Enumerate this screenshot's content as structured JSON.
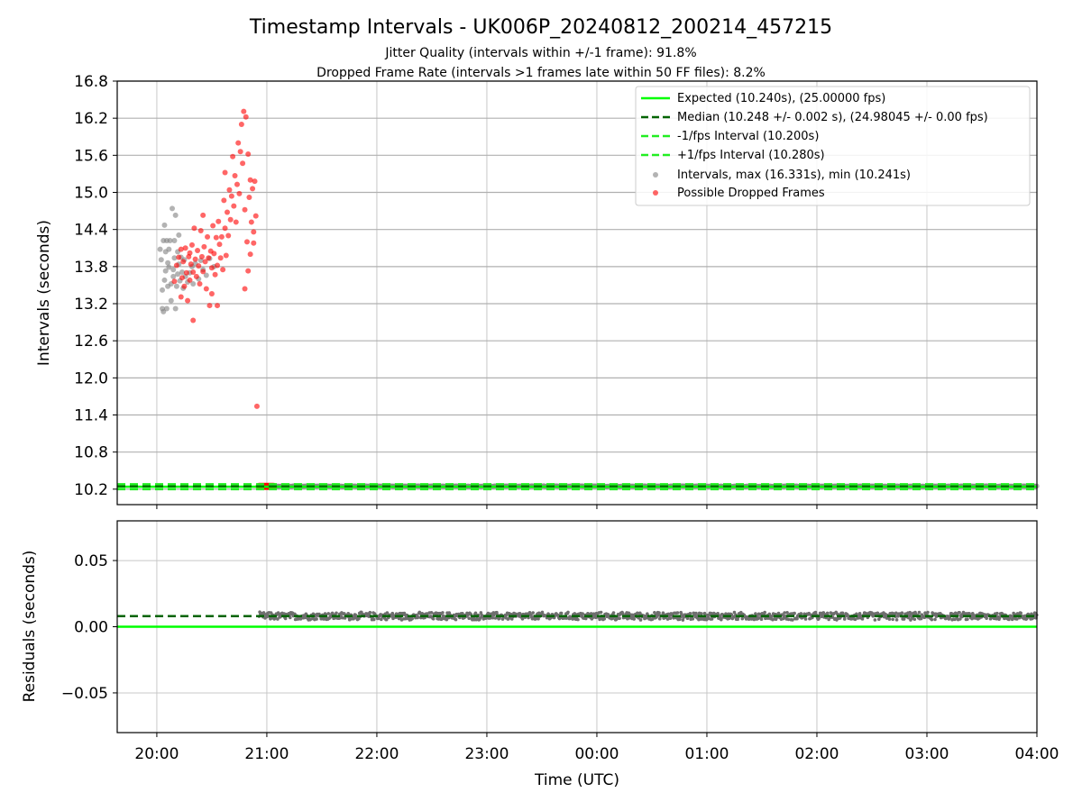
{
  "chart_data": {
    "type": "scatter",
    "title": "Timestamp Intervals - UK006P_20240812_200214_457215",
    "subtitle_1": "Jitter Quality (intervals within +/-1 frame): 91.8%",
    "subtitle_2": "Dropped Frame Rate (intervals >1 frames late within 50 FF files): 8.2%",
    "xlabel": "Time (UTC)",
    "x_tick_labels": [
      "20:00",
      "21:00",
      "22:00",
      "23:00",
      "00:00",
      "01:00",
      "02:00",
      "03:00",
      "04:00"
    ],
    "xlim_hours_after_2000_utc": [
      -0.36,
      8.0
    ],
    "top_panel": {
      "ylabel": "Intervals (seconds)",
      "ylim": [
        9.95,
        16.8
      ],
      "y_ticks": [
        "10.2",
        "10.8",
        "11.4",
        "12.0",
        "12.6",
        "13.2",
        "13.8",
        "14.4",
        "15.0",
        "15.6",
        "16.2",
        "16.8"
      ],
      "grid": true,
      "legend_position": "top-right",
      "legend": [
        "Expected (10.240s), (25.00000 fps)",
        "Median (10.248 +/- 0.002 s), (24.98045 +/- 0.00 fps)",
        "-1/fps Interval (10.200s)",
        "+1/fps Interval (10.280s)",
        "Intervals, max (16.331s), min (10.241s)",
        "Possible Dropped Frames"
      ],
      "expected_interval": 10.24,
      "median_interval": 10.248,
      "minus_1fps_interval": 10.2,
      "plus_1fps_interval": 10.28,
      "max_interval": 16.331,
      "min_interval": 10.241,
      "steady_interval_segment_hours": [
        0.93,
        8.0
      ],
      "steady_dropped_cluster_hours": [
        0.93,
        1.06
      ]
    },
    "bottom_panel": {
      "ylabel": "Residuals (seconds)",
      "ylim": [
        -0.08,
        0.08
      ],
      "y_ticks": [
        "0.05",
        "0.00",
        "−0.05"
      ],
      "grid": true,
      "expected_residual": 0.0,
      "median_residual": 0.008,
      "residual_center": 0.008,
      "residual_spread": 0.002,
      "residual_x_range_hours": [
        0.93,
        8.0
      ]
    },
    "series": [
      {
        "name": "Intervals, max (16.331s), min (10.241s)",
        "color": "#808080",
        "points": [
          [
            0.03,
            14.08
          ],
          [
            0.04,
            13.91
          ],
          [
            0.05,
            13.42
          ],
          [
            0.05,
            13.12
          ],
          [
            0.06,
            14.22
          ],
          [
            0.06,
            13.07
          ],
          [
            0.07,
            13.58
          ],
          [
            0.07,
            14.47
          ],
          [
            0.08,
            13.73
          ],
          [
            0.08,
            14.04
          ],
          [
            0.09,
            14.22
          ],
          [
            0.09,
            13.12
          ],
          [
            0.1,
            13.86
          ],
          [
            0.1,
            13.48
          ],
          [
            0.11,
            14.08
          ],
          [
            0.11,
            13.79
          ],
          [
            0.12,
            14.22
          ],
          [
            0.13,
            13.52
          ],
          [
            0.13,
            13.25
          ],
          [
            0.14,
            14.74
          ],
          [
            0.15,
            13.64
          ],
          [
            0.15,
            13.75
          ],
          [
            0.16,
            14.22
          ],
          [
            0.16,
            13.94
          ],
          [
            0.17,
            13.12
          ],
          [
            0.17,
            14.63
          ],
          [
            0.18,
            13.48
          ],
          [
            0.19,
            14.04
          ],
          [
            0.19,
            13.68
          ],
          [
            0.2,
            14.31
          ],
          [
            0.2,
            13.84
          ],
          [
            0.21,
            13.57
          ],
          [
            0.22,
            13.95
          ],
          [
            0.23,
            13.71
          ],
          [
            0.24,
            13.45
          ],
          [
            0.25,
            13.91
          ],
          [
            0.26,
            13.64
          ],
          [
            0.28,
            13.55
          ],
          [
            0.3,
            13.7
          ],
          [
            0.32,
            13.8
          ],
          [
            0.33,
            13.52
          ],
          [
            0.35,
            13.85
          ],
          [
            0.38,
            13.6
          ],
          [
            0.4,
            13.9
          ],
          [
            0.42,
            13.75
          ],
          [
            0.45,
            13.66
          ],
          [
            0.48,
            13.93
          ],
          [
            0.52,
            13.8
          ]
        ]
      },
      {
        "name": "Possible Dropped Frames",
        "color": "#ff0000",
        "points": [
          [
            0.16,
            13.56
          ],
          [
            0.18,
            13.82
          ],
          [
            0.2,
            13.95
          ],
          [
            0.22,
            14.08
          ],
          [
            0.22,
            13.31
          ],
          [
            0.23,
            13.62
          ],
          [
            0.24,
            13.88
          ],
          [
            0.25,
            13.48
          ],
          [
            0.26,
            14.1
          ],
          [
            0.27,
            13.7
          ],
          [
            0.28,
            13.25
          ],
          [
            0.29,
            13.96
          ],
          [
            0.3,
            14.02
          ],
          [
            0.3,
            13.58
          ],
          [
            0.31,
            13.84
          ],
          [
            0.32,
            14.15
          ],
          [
            0.33,
            13.71
          ],
          [
            0.33,
            12.93
          ],
          [
            0.34,
            14.42
          ],
          [
            0.35,
            13.92
          ],
          [
            0.36,
            13.64
          ],
          [
            0.37,
            14.06
          ],
          [
            0.38,
            13.81
          ],
          [
            0.39,
            13.52
          ],
          [
            0.4,
            14.38
          ],
          [
            0.41,
            13.96
          ],
          [
            0.42,
            13.72
          ],
          [
            0.42,
            14.63
          ],
          [
            0.43,
            14.12
          ],
          [
            0.44,
            13.88
          ],
          [
            0.45,
            13.44
          ],
          [
            0.46,
            14.28
          ],
          [
            0.47,
            13.94
          ],
          [
            0.48,
            13.17
          ],
          [
            0.49,
            14.05
          ],
          [
            0.5,
            13.78
          ],
          [
            0.5,
            13.36
          ],
          [
            0.51,
            14.46
          ],
          [
            0.52,
            14.01
          ],
          [
            0.53,
            13.67
          ],
          [
            0.54,
            14.27
          ],
          [
            0.55,
            13.82
          ],
          [
            0.55,
            13.17
          ],
          [
            0.56,
            14.53
          ],
          [
            0.57,
            14.16
          ],
          [
            0.58,
            13.94
          ],
          [
            0.59,
            14.28
          ],
          [
            0.6,
            13.75
          ],
          [
            0.61,
            14.87
          ],
          [
            0.62,
            14.42
          ],
          [
            0.62,
            15.32
          ],
          [
            0.63,
            13.98
          ],
          [
            0.64,
            14.68
          ],
          [
            0.65,
            14.3
          ],
          [
            0.66,
            15.04
          ],
          [
            0.67,
            14.56
          ],
          [
            0.68,
            14.94
          ],
          [
            0.69,
            15.58
          ],
          [
            0.7,
            14.78
          ],
          [
            0.71,
            15.27
          ],
          [
            0.72,
            14.52
          ],
          [
            0.73,
            15.13
          ],
          [
            0.74,
            15.8
          ],
          [
            0.75,
            14.98
          ],
          [
            0.76,
            15.66
          ],
          [
            0.77,
            16.1
          ],
          [
            0.78,
            15.47
          ],
          [
            0.79,
            16.31
          ],
          [
            0.8,
            14.72
          ],
          [
            0.81,
            16.22
          ],
          [
            0.82,
            14.2
          ],
          [
            0.83,
            15.62
          ],
          [
            0.84,
            14.92
          ],
          [
            0.85,
            15.2
          ],
          [
            0.86,
            14.52
          ],
          [
            0.87,
            15.06
          ],
          [
            0.88,
            14.36
          ],
          [
            0.89,
            15.18
          ],
          [
            0.9,
            14.62
          ],
          [
            0.91,
            11.54
          ],
          [
            0.8,
            13.44
          ],
          [
            0.83,
            13.73
          ],
          [
            0.88,
            14.18
          ],
          [
            0.85,
            14.0
          ]
        ]
      }
    ],
    "colors": {
      "expected": "#00ff00",
      "median": "#006400",
      "fps_bounds": "#22ee22",
      "intervals": "#808080",
      "dropped": "#ff0000"
    }
  }
}
